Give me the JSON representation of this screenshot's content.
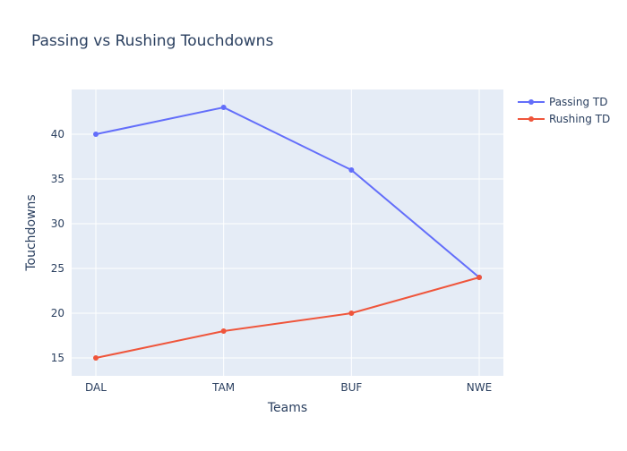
{
  "chart_data": {
    "type": "line",
    "title": "Passing vs Rushing Touchdowns",
    "xlabel": "Teams",
    "ylabel": "Touchdowns",
    "categories": [
      "DAL",
      "TAM",
      "BUF",
      "NWE"
    ],
    "yticks": [
      15,
      20,
      25,
      30,
      35,
      40
    ],
    "ylim": [
      13,
      45
    ],
    "grid": true,
    "legend_position": "top-right",
    "series": [
      {
        "name": "Passing TD",
        "values": [
          40,
          43,
          36,
          24
        ],
        "color": "#636efa"
      },
      {
        "name": "Rushing TD",
        "values": [
          15,
          18,
          20,
          24
        ],
        "color": "#ef553b"
      }
    ]
  },
  "style": {
    "plot_bg": "#e5ecf6",
    "grid_color": "#ffffff",
    "text_color": "#2a3f5f"
  }
}
